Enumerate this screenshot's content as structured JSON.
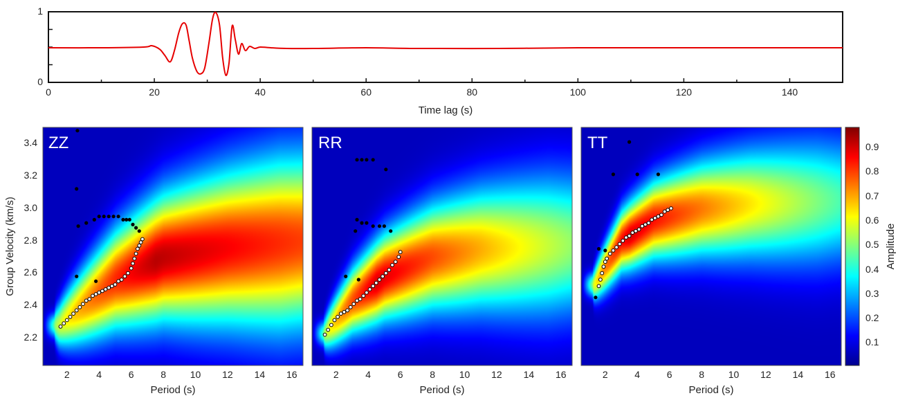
{
  "waveform": {
    "xlabel": "Time lag (s)",
    "xlim": [
      0,
      150
    ],
    "ylim": [
      0,
      1
    ],
    "x_ticks": [
      "0",
      "20",
      "40",
      "60",
      "80",
      "100",
      "120",
      "140"
    ],
    "y_ticks": [
      "0",
      "1"
    ],
    "line_color": "#e60000"
  },
  "colorbar": {
    "label": "Amplitude",
    "ticks": [
      "0.1",
      "0.2",
      "0.3",
      "0.4",
      "0.5",
      "0.6",
      "0.7",
      "0.8",
      "0.9"
    ],
    "colormap": "jet"
  },
  "spectrograms": {
    "ylabel": "Group Velocity (km/s)",
    "xlabel": "Period (s)",
    "x_ticks": [
      "2",
      "4",
      "6",
      "8",
      "10",
      "12",
      "14",
      "16"
    ],
    "y_ticks": [
      "2.2",
      "2.4",
      "2.6",
      "2.8",
      "3.0",
      "3.2",
      "3.4"
    ]
  },
  "chart_data": [
    {
      "type": "line",
      "xlabel": "Time lag (s)",
      "xlim": [
        0,
        150
      ],
      "ylim": [
        0,
        1
      ],
      "series": [
        {
          "x": [
            0,
            10,
            18,
            19.5,
            21,
            22,
            23,
            23.8,
            24.6,
            25.3,
            26,
            26.6,
            27.2,
            28,
            28.7,
            29.5,
            30.3,
            31,
            31.6,
            32.3,
            32.9,
            33.5,
            34.1,
            34.7,
            35.3,
            35.9,
            36.5,
            37.2,
            38,
            39,
            40,
            42,
            45,
            50,
            60,
            70,
            85,
            100,
            120,
            140,
            150
          ],
          "y": [
            0.49,
            0.49,
            0.5,
            0.52,
            0.47,
            0.38,
            0.29,
            0.45,
            0.7,
            0.83,
            0.81,
            0.58,
            0.34,
            0.16,
            0.12,
            0.2,
            0.55,
            0.9,
            0.99,
            0.82,
            0.35,
            0.1,
            0.27,
            0.8,
            0.6,
            0.4,
            0.55,
            0.45,
            0.51,
            0.48,
            0.5,
            0.49,
            0.48,
            0.48,
            0.49,
            0.48,
            0.48,
            0.49,
            0.49,
            0.49,
            0.49
          ]
        }
      ]
    },
    {
      "type": "heatmap",
      "label": "ZZ",
      "xlabel": "Period (s)",
      "ylabel": "Group Velocity (km/s)",
      "xlim": [
        0.5,
        16.7
      ],
      "ylim": [
        2.05,
        3.52
      ],
      "field": {
        "ridge": [
          [
            1.5,
            2.3
          ],
          [
            3,
            2.42
          ],
          [
            5,
            2.58
          ],
          [
            8,
            2.72
          ],
          [
            12,
            2.78
          ],
          [
            16.7,
            2.82
          ]
        ],
        "peak": [
          7.5,
          2.7
        ],
        "width_start": 0.05,
        "width_end": 0.36,
        "amp_start": 0.45,
        "amp_peak": 0.96,
        "amp_end": 0.82
      },
      "white_points": {
        "x": [
          1.6,
          1.8,
          2.0,
          2.2,
          2.4,
          2.6,
          2.8,
          3.0,
          3.2,
          3.4,
          3.6,
          3.8,
          4.0,
          4.2,
          4.4,
          4.6,
          4.8,
          5.0,
          5.2,
          5.4,
          5.6,
          5.8,
          6.0,
          6.1,
          6.2,
          6.3,
          6.4,
          6.5,
          6.6,
          6.7
        ],
        "y": [
          2.29,
          2.31,
          2.33,
          2.35,
          2.37,
          2.39,
          2.41,
          2.43,
          2.45,
          2.46,
          2.48,
          2.49,
          2.5,
          2.51,
          2.52,
          2.53,
          2.54,
          2.55,
          2.57,
          2.58,
          2.6,
          2.62,
          2.65,
          2.68,
          2.71,
          2.74,
          2.77,
          2.79,
          2.81,
          2.83
        ]
      },
      "black_points": {
        "x": [
          2.6,
          2.7,
          3.2,
          3.7,
          4.0,
          4.3,
          4.6,
          4.9,
          5.2,
          5.5,
          5.7,
          5.9,
          6.1,
          6.3,
          6.5,
          2.6,
          3.8,
          2.65
        ],
        "y": [
          3.14,
          2.91,
          2.93,
          2.95,
          2.97,
          2.97,
          2.97,
          2.97,
          2.97,
          2.95,
          2.95,
          2.95,
          2.92,
          2.9,
          2.88,
          2.6,
          2.57,
          3.5
        ]
      }
    },
    {
      "type": "heatmap",
      "label": "RR",
      "xlabel": "Period (s)",
      "xlim": [
        0.5,
        16.7
      ],
      "ylim": [
        2.05,
        3.52
      ],
      "field": {
        "ridge": [
          [
            1.3,
            2.25
          ],
          [
            3,
            2.45
          ],
          [
            5,
            2.6
          ],
          [
            8,
            2.72
          ],
          [
            11,
            2.77
          ],
          [
            16.7,
            2.8
          ]
        ],
        "peak": [
          4.5,
          2.55
        ],
        "width_start": 0.05,
        "width_end": 0.3,
        "amp_start": 0.45,
        "amp_peak": 0.93,
        "amp_end": 0.5
      },
      "white_points": {
        "x": [
          1.3,
          1.5,
          1.7,
          1.9,
          2.1,
          2.3,
          2.5,
          2.7,
          2.9,
          3.1,
          3.3,
          3.5,
          3.7,
          3.9,
          4.1,
          4.3,
          4.5,
          4.7,
          4.9,
          5.1,
          5.3,
          5.5,
          5.7,
          5.9,
          6.0
        ],
        "y": [
          2.24,
          2.27,
          2.3,
          2.33,
          2.35,
          2.37,
          2.38,
          2.39,
          2.41,
          2.43,
          2.45,
          2.46,
          2.48,
          2.5,
          2.52,
          2.54,
          2.56,
          2.58,
          2.6,
          2.62,
          2.64,
          2.67,
          2.69,
          2.72,
          2.75
        ]
      },
      "black_points": {
        "x": [
          3.3,
          3.6,
          3.9,
          4.3,
          5.1,
          3.3,
          3.6,
          3.9,
          4.3,
          4.7,
          5.0,
          5.4,
          3.2,
          2.6,
          3.4
        ],
        "y": [
          3.32,
          3.32,
          3.32,
          3.32,
          3.26,
          2.95,
          2.93,
          2.93,
          2.91,
          2.91,
          2.91,
          2.88,
          2.88,
          2.6,
          2.58
        ]
      }
    },
    {
      "type": "heatmap",
      "label": "TT",
      "xlabel": "Period (s)",
      "xlim": [
        0.5,
        16.7
      ],
      "ylim": [
        2.05,
        3.52
      ],
      "field": {
        "ridge": [
          [
            1.3,
            2.55
          ],
          [
            3,
            2.82
          ],
          [
            5,
            2.95
          ],
          [
            8,
            3.02
          ],
          [
            11,
            3.05
          ],
          [
            16.7,
            3.07
          ]
        ],
        "peak": [
          3.5,
          2.85
        ],
        "width_start": 0.05,
        "width_end": 0.27,
        "amp_start": 0.5,
        "amp_peak": 0.93,
        "amp_end": 0.42
      },
      "white_points": {
        "x": [
          1.6,
          1.7,
          1.8,
          1.9,
          2.0,
          2.1,
          2.3,
          2.5,
          2.7,
          2.9,
          3.1,
          3.3,
          3.5,
          3.7,
          3.9,
          4.1,
          4.3,
          4.5,
          4.7,
          4.9,
          5.1,
          5.3,
          5.5,
          5.7,
          5.9,
          6.1
        ],
        "y": [
          2.54,
          2.58,
          2.62,
          2.66,
          2.69,
          2.71,
          2.74,
          2.76,
          2.78,
          2.8,
          2.82,
          2.84,
          2.85,
          2.87,
          2.88,
          2.89,
          2.91,
          2.92,
          2.93,
          2.95,
          2.96,
          2.97,
          2.98,
          3.0,
          3.01,
          3.02
        ]
      },
      "black_points": {
        "x": [
          3.5,
          2.5,
          4.0,
          5.3,
          1.6,
          2.0,
          1.4
        ],
        "y": [
          3.43,
          3.23,
          3.23,
          3.23,
          2.77,
          2.76,
          2.47
        ]
      }
    }
  ]
}
